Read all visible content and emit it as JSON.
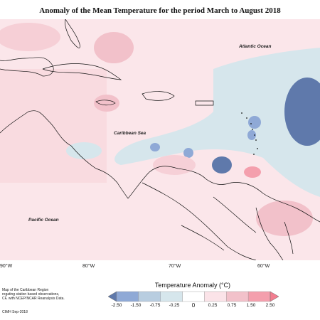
{
  "title": "Anomaly of the Mean Temperature for the period March to August 2018",
  "map": {
    "ocean_labels": {
      "atlantic": "Atlantic Ocean",
      "caribbean": "Caribbean Sea",
      "pacific": "Pacific Ocean"
    },
    "longitude_labels": [
      "90°W",
      "80°W",
      "70°W",
      "60°W"
    ]
  },
  "notes": {
    "line1": "Map of the Caribbean Region",
    "line2": "regating station based observations,",
    "line3": "CF, with NCEP/NCAR Reanalysis Data.",
    "credit": "CIMH Sep-2018"
  },
  "legend": {
    "title": "Temperature Anomaly (°C)",
    "ticks": [
      "-2.50",
      "-1.50",
      "-0.75",
      "-0.25",
      "0",
      "0.25",
      "0.75",
      "1.50",
      "2.50"
    ],
    "colors": [
      "#5f79ab",
      "#8fa9d6",
      "#b8cde0",
      "#d6e6ec",
      "#ffffff",
      "#fbe3e8",
      "#f2c1ca",
      "#f49fad",
      "#f27d8f"
    ]
  },
  "colors": {
    "land_border": "#111111",
    "sea_neutral": "#fde8ec"
  }
}
